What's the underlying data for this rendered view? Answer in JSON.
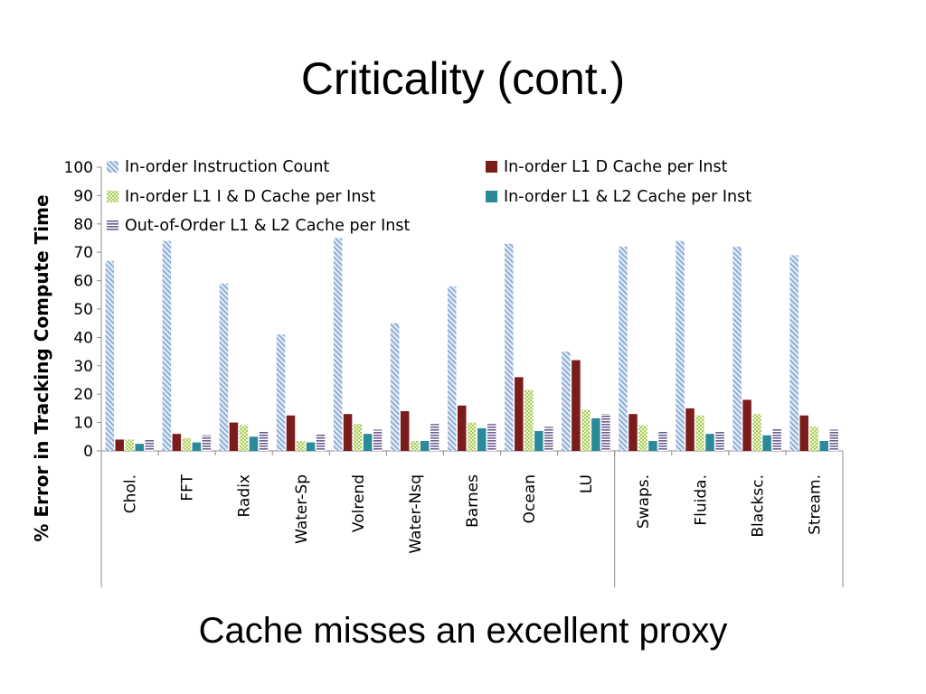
{
  "slide": {
    "title": "Criticality (cont.)",
    "caption": "Cache misses an excellent proxy"
  },
  "chart_data": {
    "type": "bar",
    "ylabel": "% Error in Tracking Compute Time",
    "ylim": [
      0,
      100
    ],
    "yticks": [
      0,
      10,
      20,
      30,
      40,
      50,
      60,
      70,
      80,
      90,
      100
    ],
    "grid": false,
    "legend_position": "top",
    "categories": [
      "Chol.",
      "FFT",
      "Radix",
      "Water-Sp",
      "Volrend",
      "Water-Nsq",
      "Barnes",
      "Ocean",
      "LU",
      "Swaps.",
      "Fluida.",
      "Blacksc.",
      "Stream."
    ],
    "group_separator_after": "LU",
    "series": [
      {
        "name": "In-order Instruction Count",
        "color": "#9db8dc",
        "pattern": "diagonal-hatch",
        "values": [
          67,
          74,
          59,
          41,
          75,
          45,
          58,
          73,
          35,
          72,
          74,
          72,
          69
        ]
      },
      {
        "name": "In-order L1 D Cache per Inst",
        "color": "#7b1c1c",
        "pattern": "solid",
        "values": [
          4,
          6,
          10,
          12.5,
          13,
          14,
          16,
          26,
          32,
          13,
          15,
          18,
          12.5
        ]
      },
      {
        "name": "In-order L1 I & D Cache per Inst",
        "color": "#b5d36a",
        "pattern": "checker",
        "values": [
          4,
          4.5,
          9,
          3.5,
          9.5,
          3.5,
          10,
          21.5,
          14.5,
          9,
          12.5,
          13,
          8.5
        ]
      },
      {
        "name": "In-order L1 & L2 Cache per Inst",
        "color": "#2b8a9a",
        "pattern": "solid",
        "values": [
          2.5,
          3,
          5,
          3,
          6,
          3.5,
          8,
          7,
          11.5,
          3.5,
          6,
          5.5,
          3.5
        ]
      },
      {
        "name": "Out-of-Order L1 & L2 Cache per Inst",
        "color": "#7a6a9a",
        "pattern": "horizontal-stripes",
        "values": [
          4,
          5.5,
          7,
          6,
          7.5,
          9.5,
          9.5,
          8.5,
          13,
          7,
          7,
          8,
          7.5
        ]
      }
    ]
  }
}
